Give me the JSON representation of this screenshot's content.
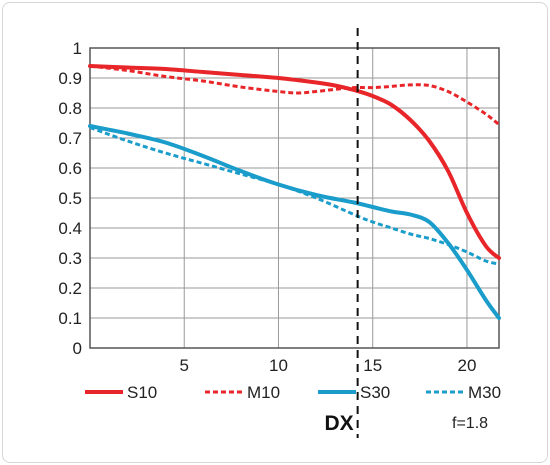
{
  "chart_data": {
    "type": "line",
    "xlim": [
      0,
      21.7
    ],
    "ylim": [
      0,
      1
    ],
    "x_ticks": [
      "5",
      "10",
      "15",
      "20"
    ],
    "y_ticks": [
      "0",
      "0.1",
      "0.2",
      "0.3",
      "0.4",
      "0.5",
      "0.6",
      "0.7",
      "0.8",
      "0.9",
      "1"
    ],
    "grid": true,
    "legend_position": "bottom",
    "series": [
      {
        "name": "S10",
        "color": "#e8262a",
        "style": "solid",
        "points": [
          [
            0,
            0.94
          ],
          [
            2,
            0.935
          ],
          [
            4,
            0.93
          ],
          [
            6,
            0.92
          ],
          [
            8,
            0.91
          ],
          [
            10,
            0.9
          ],
          [
            12,
            0.885
          ],
          [
            13,
            0.875
          ],
          [
            14,
            0.86
          ],
          [
            15,
            0.84
          ],
          [
            16,
            0.81
          ],
          [
            17,
            0.76
          ],
          [
            18,
            0.69
          ],
          [
            19,
            0.59
          ],
          [
            20,
            0.45
          ],
          [
            21,
            0.34
          ],
          [
            21.7,
            0.3
          ]
        ]
      },
      {
        "name": "M10",
        "color": "#e8262a",
        "style": "dotted",
        "points": [
          [
            0,
            0.94
          ],
          [
            2,
            0.925
          ],
          [
            4,
            0.905
          ],
          [
            6,
            0.89
          ],
          [
            8,
            0.87
          ],
          [
            10,
            0.855
          ],
          [
            11,
            0.85
          ],
          [
            12,
            0.855
          ],
          [
            13,
            0.862
          ],
          [
            14,
            0.868
          ],
          [
            15,
            0.868
          ],
          [
            16,
            0.872
          ],
          [
            17,
            0.877
          ],
          [
            18,
            0.875
          ],
          [
            19,
            0.855
          ],
          [
            20,
            0.82
          ],
          [
            21,
            0.78
          ],
          [
            21.7,
            0.745
          ]
        ]
      },
      {
        "name": "S30",
        "color": "#1a9dcb",
        "style": "solid",
        "points": [
          [
            0,
            0.74
          ],
          [
            2,
            0.715
          ],
          [
            4,
            0.685
          ],
          [
            6,
            0.64
          ],
          [
            8,
            0.59
          ],
          [
            10,
            0.545
          ],
          [
            12,
            0.51
          ],
          [
            14,
            0.485
          ],
          [
            15,
            0.47
          ],
          [
            16,
            0.455
          ],
          [
            17,
            0.445
          ],
          [
            18,
            0.42
          ],
          [
            19,
            0.35
          ],
          [
            20,
            0.26
          ],
          [
            21,
            0.16
          ],
          [
            21.7,
            0.1
          ]
        ]
      },
      {
        "name": "M30",
        "color": "#1a9dcb",
        "style": "dotted",
        "points": [
          [
            0,
            0.735
          ],
          [
            2,
            0.69
          ],
          [
            4,
            0.65
          ],
          [
            6,
            0.615
          ],
          [
            8,
            0.58
          ],
          [
            10,
            0.545
          ],
          [
            12,
            0.5
          ],
          [
            14,
            0.445
          ],
          [
            15,
            0.42
          ],
          [
            16,
            0.4
          ],
          [
            17,
            0.38
          ],
          [
            18,
            0.365
          ],
          [
            19,
            0.345
          ],
          [
            20,
            0.32
          ],
          [
            21,
            0.29
          ],
          [
            21.7,
            0.28
          ]
        ]
      }
    ],
    "annotations": {
      "dx_label": "DX",
      "dx_x": 14.2,
      "aperture": "f=1.8"
    }
  }
}
